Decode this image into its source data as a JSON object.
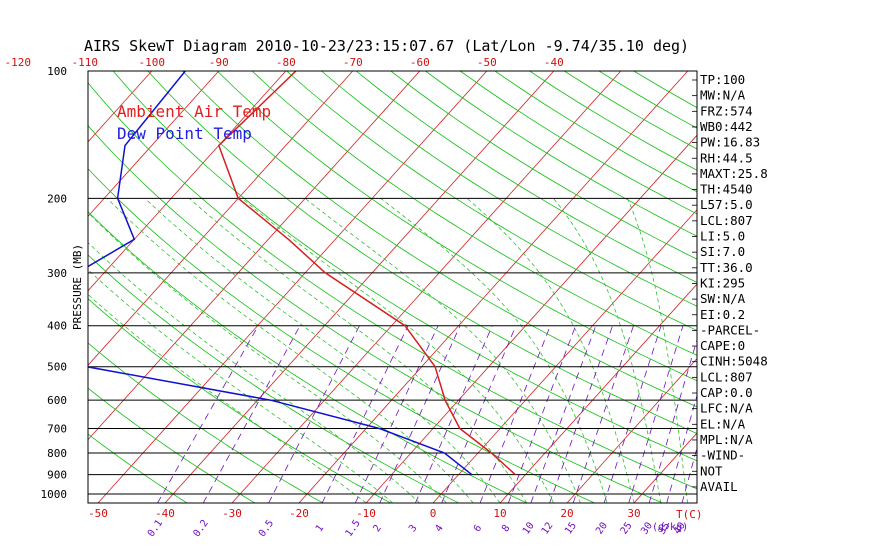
{
  "chart_data": {
    "type": "line",
    "title": "AIRS SkewT Diagram 2010-10-23/23:15:07.67 (Lat/Lon -9.74/35.10 deg)",
    "ylabel": "PRESSURE (MB)",
    "x_unit_label": "T(C)",
    "mixing_ratio_unit_label": "(g/kg)",
    "pressure_ticks": [
      100,
      200,
      300,
      400,
      500,
      600,
      700,
      800,
      900,
      1000
    ],
    "temp_ticks_bottom": [
      -50,
      -40,
      -30,
      -20,
      -10,
      0,
      10,
      20,
      30
    ],
    "temp_ticks_top": [
      -120,
      -110,
      -100,
      -90,
      -80,
      -70,
      -60,
      -50,
      -40
    ],
    "mixing_ratio_labels": [
      "0.1",
      "0.2",
      "0.5",
      "1",
      "1.5",
      "2",
      "3",
      "4",
      "6",
      "8",
      "10",
      "12",
      "15",
      "20",
      "25",
      "30",
      "35",
      "40"
    ],
    "legend": [
      {
        "label": "Ambient Air Temp",
        "color": "#e02020"
      },
      {
        "label": "Dew Point Temp",
        "color": "#2020e0"
      }
    ],
    "colors": {
      "temp_line": "#d42020",
      "dew_line": "#1010d0",
      "isotherm": "#d02020",
      "dry_adiabat": "#10c010",
      "moist_adiabat": "#30c030",
      "mixing_ratio": "#7010c0",
      "isobar": "#000000",
      "temp_tick": "#d01010",
      "mix_tick": "#7010c0"
    },
    "series": [
      {
        "name": "Ambient Air Temp",
        "points": [
          [
            100,
            -78.5
          ],
          [
            150,
            -80
          ],
          [
            200,
            -70
          ],
          [
            250,
            -57
          ],
          [
            300,
            -47
          ],
          [
            400,
            -28
          ],
          [
            500,
            -18
          ],
          [
            600,
            -12
          ],
          [
            700,
            -6
          ],
          [
            800,
            2
          ],
          [
            900,
            8.5
          ]
        ]
      },
      {
        "name": "Dew Point Temp",
        "points": [
          [
            100,
            -95
          ],
          [
            150,
            -94
          ],
          [
            200,
            -88
          ],
          [
            250,
            -80
          ],
          [
            300,
            -84
          ],
          [
            400,
            -88
          ],
          [
            500,
            -70
          ],
          [
            600,
            -38
          ],
          [
            700,
            -18
          ],
          [
            800,
            -5
          ],
          [
            900,
            2
          ]
        ]
      }
    ]
  },
  "indices": [
    "TP:100",
    "MW:N/A",
    "FRZ:574",
    "WB0:442",
    "PW:16.83",
    "RH:44.5",
    "MAXT:25.8",
    "TH:4540",
    "L57:5.0",
    "LCL:807",
    "LI:5.0",
    "SI:7.0",
    "TT:36.0",
    "KI:295",
    "SW:N/A",
    "EI:0.2",
    "-PARCEL-",
    "CAPE:0",
    "CINH:5048",
    "LCL:807",
    "CAP:0.0",
    "LFC:N/A",
    "EL:N/A",
    "MPL:N/A",
    "-WIND-",
    "NOT",
    "AVAIL"
  ]
}
